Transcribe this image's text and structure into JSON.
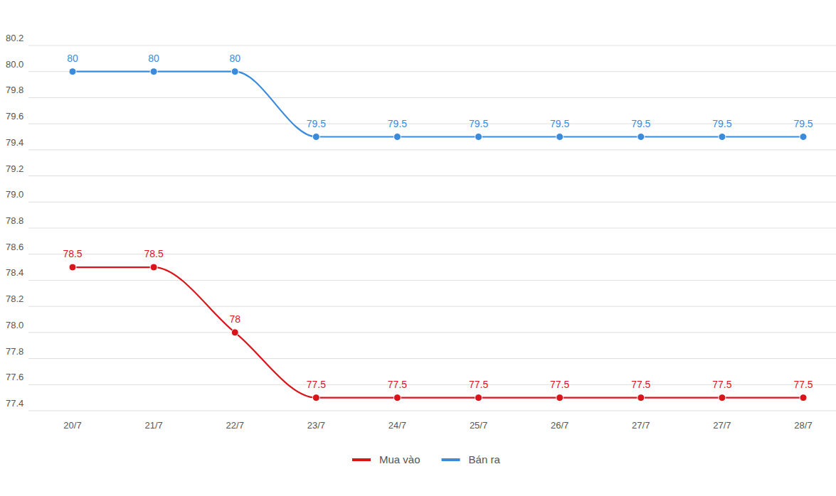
{
  "chart_data": {
    "type": "line",
    "categories": [
      "20/7",
      "21/7",
      "22/7",
      "23/7",
      "24/7",
      "25/7",
      "26/7",
      "27/7",
      "27/7",
      "28/7"
    ],
    "series": [
      {
        "name": "Mua vào",
        "color": "#d9151b",
        "marker": "circle",
        "line_style": "smooth",
        "values": [
          78.5,
          78.5,
          78,
          77.5,
          77.5,
          77.5,
          77.5,
          77.5,
          77.5,
          77.5
        ]
      },
      {
        "name": "Bán ra",
        "color": "#3a8bdb",
        "marker": "circle",
        "line_style": "smooth",
        "values": [
          80,
          80,
          80,
          79.5,
          79.5,
          79.5,
          79.5,
          79.5,
          79.5,
          79.5
        ]
      }
    ],
    "ylim": [
      77.4,
      80.2
    ],
    "yticks": [
      77.4,
      77.6,
      77.8,
      {
        "value": 78,
        "label": "78.0"
      },
      78.2,
      78.4,
      78.6,
      78.8,
      {
        "value": 79,
        "label": "79.0"
      },
      79.2,
      79.4,
      79.6,
      79.8,
      {
        "value": 80,
        "label": "80.0"
      },
      80.2
    ],
    "grid": true,
    "data_labels": true,
    "legend": "bottom"
  }
}
